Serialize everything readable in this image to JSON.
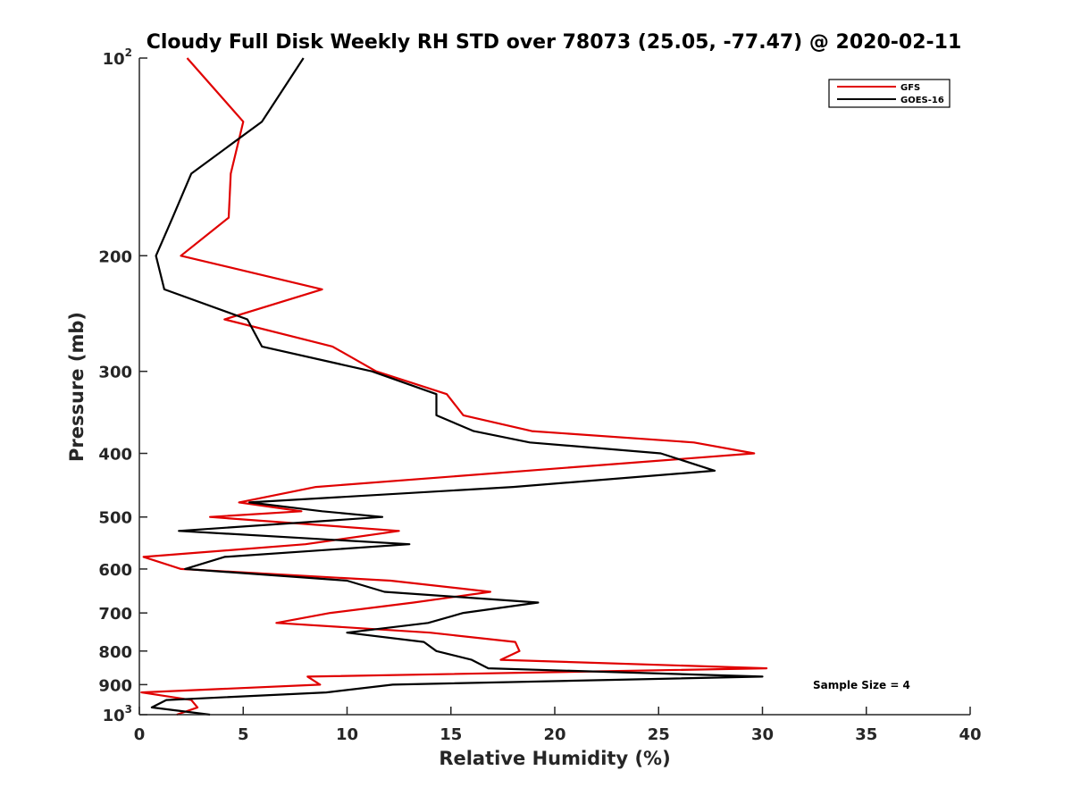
{
  "chart_data": {
    "type": "line",
    "title": "Cloudy Full Disk Weekly RH STD over 78073 (25.05, -77.47) @ 2020-02-11",
    "xlabel": "Relative Humidity (%)",
    "ylabel": "Pressure (mb)",
    "xlim": [
      0,
      40
    ],
    "ylim": [
      100,
      1000
    ],
    "yscale": "log",
    "y_reversed": true,
    "grid": false,
    "legend_position": "top-right",
    "x_ticks": [
      0,
      5,
      10,
      15,
      20,
      25,
      30,
      35,
      40
    ],
    "x_tick_labels": [
      "0",
      "5",
      "10",
      "15",
      "20",
      "25",
      "30",
      "35",
      "40"
    ],
    "y_ticks": [
      100,
      200,
      300,
      400,
      500,
      600,
      700,
      800,
      900,
      1000
    ],
    "y_tick_labels": [
      {
        "base": "10",
        "exp": "2"
      },
      {
        "base": "200",
        "exp": ""
      },
      {
        "base": "300",
        "exp": ""
      },
      {
        "base": "400",
        "exp": ""
      },
      {
        "base": "500",
        "exp": ""
      },
      {
        "base": "600",
        "exp": ""
      },
      {
        "base": "700",
        "exp": ""
      },
      {
        "base": "800",
        "exp": ""
      },
      {
        "base": "900",
        "exp": ""
      },
      {
        "base": "10",
        "exp": "3"
      }
    ],
    "annotation": "Sample Size = 4",
    "series": [
      {
        "name": "GFS",
        "color": "#e00000",
        "points": [
          [
            2.3,
            100
          ],
          [
            5.0,
            125
          ],
          [
            4.4,
            150
          ],
          [
            4.3,
            175
          ],
          [
            2.0,
            200
          ],
          [
            8.8,
            225
          ],
          [
            4.1,
            250
          ],
          [
            9.3,
            275
          ],
          [
            11.4,
            300
          ],
          [
            14.8,
            325
          ],
          [
            15.6,
            350
          ],
          [
            18.9,
            370
          ],
          [
            26.7,
            385
          ],
          [
            29.6,
            400
          ],
          [
            8.5,
            450
          ],
          [
            4.8,
            475
          ],
          [
            7.8,
            490
          ],
          [
            3.4,
            500
          ],
          [
            12.5,
            525
          ],
          [
            8.0,
            550
          ],
          [
            0.2,
            575
          ],
          [
            2.0,
            600
          ],
          [
            12.1,
            625
          ],
          [
            16.9,
            650
          ],
          [
            13.2,
            675
          ],
          [
            9.2,
            700
          ],
          [
            6.6,
            725
          ],
          [
            14.0,
            750
          ],
          [
            18.1,
            775
          ],
          [
            18.3,
            800
          ],
          [
            17.4,
            825
          ],
          [
            30.2,
            850
          ],
          [
            8.1,
            875
          ],
          [
            8.7,
            900
          ],
          [
            0.1,
            925
          ],
          [
            2.5,
            950
          ],
          [
            2.8,
            975
          ],
          [
            1.8,
            1000
          ]
        ]
      },
      {
        "name": "GOES-16",
        "color": "#000000",
        "points": [
          [
            7.9,
            100
          ],
          [
            5.9,
            125
          ],
          [
            2.5,
            150
          ],
          [
            1.6,
            175
          ],
          [
            0.8,
            200
          ],
          [
            1.2,
            225
          ],
          [
            5.2,
            250
          ],
          [
            5.9,
            275
          ],
          [
            11.2,
            300
          ],
          [
            14.3,
            325
          ],
          [
            14.3,
            350
          ],
          [
            16.1,
            370
          ],
          [
            18.8,
            385
          ],
          [
            25.1,
            400
          ],
          [
            27.7,
            425
          ],
          [
            18.0,
            450
          ],
          [
            5.3,
            475
          ],
          [
            8.8,
            490
          ],
          [
            11.7,
            500
          ],
          [
            1.9,
            525
          ],
          [
            13.0,
            550
          ],
          [
            4.1,
            575
          ],
          [
            2.2,
            600
          ],
          [
            10.0,
            625
          ],
          [
            11.8,
            650
          ],
          [
            19.2,
            675
          ],
          [
            15.6,
            700
          ],
          [
            13.9,
            725
          ],
          [
            10.0,
            750
          ],
          [
            13.7,
            775
          ],
          [
            14.3,
            800
          ],
          [
            16.0,
            825
          ],
          [
            16.8,
            850
          ],
          [
            30.0,
            875
          ],
          [
            12.2,
            900
          ],
          [
            9.0,
            925
          ],
          [
            1.3,
            950
          ],
          [
            0.6,
            975
          ],
          [
            3.4,
            1000
          ]
        ]
      }
    ]
  }
}
